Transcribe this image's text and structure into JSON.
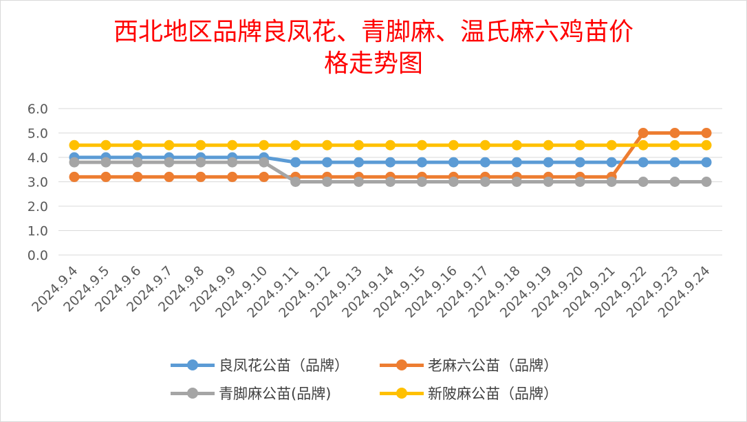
{
  "chart_data": {
    "type": "line",
    "title_lines": [
      "西北地区品牌良凤花、青脚麻、温氏麻六鸡苗价",
      "格走势图"
    ],
    "categories": [
      "2024.9.4",
      "2024.9.5",
      "2024.9.6",
      "2024.9.7",
      "2024.9.8",
      "2024.9.9",
      "2024.9.10",
      "2024.9.11",
      "2024.9.12",
      "2024.9.13",
      "2024.9.14",
      "2024.9.15",
      "2024.9.16",
      "2024.9.17",
      "2024.9.18",
      "2024.9.19",
      "2024.9.20",
      "2024.9.21",
      "2024.9.22",
      "2024.9.23",
      "2024.9.24"
    ],
    "y_ticks": [
      "0.0",
      "1.0",
      "2.0",
      "3.0",
      "4.0",
      "5.0",
      "6.0"
    ],
    "ylim": [
      0,
      6
    ],
    "grid": true,
    "legend_position": "bottom",
    "series": [
      {
        "name": "良凤花公苗（品牌）",
        "color": "#5B9BD5",
        "values": [
          4.0,
          4.0,
          4.0,
          4.0,
          4.0,
          4.0,
          4.0,
          3.8,
          3.8,
          3.8,
          3.8,
          3.8,
          3.8,
          3.8,
          3.8,
          3.8,
          3.8,
          3.8,
          3.8,
          3.8,
          3.8
        ]
      },
      {
        "name": "老麻六公苗（品牌）",
        "color": "#ED7D31",
        "values": [
          3.2,
          3.2,
          3.2,
          3.2,
          3.2,
          3.2,
          3.2,
          3.2,
          3.2,
          3.2,
          3.2,
          3.2,
          3.2,
          3.2,
          3.2,
          3.2,
          3.2,
          3.2,
          5.0,
          5.0,
          5.0
        ]
      },
      {
        "name": "青脚麻公苗(品牌)",
        "color": "#A5A5A5",
        "values": [
          3.8,
          3.8,
          3.8,
          3.8,
          3.8,
          3.8,
          3.8,
          3.0,
          3.0,
          3.0,
          3.0,
          3.0,
          3.0,
          3.0,
          3.0,
          3.0,
          3.0,
          3.0,
          3.0,
          3.0,
          3.0
        ]
      },
      {
        "name": "新陂麻公苗（品牌）",
        "color": "#FFC000",
        "values": [
          4.5,
          4.5,
          4.5,
          4.5,
          4.5,
          4.5,
          4.5,
          4.5,
          4.5,
          4.5,
          4.5,
          4.5,
          4.5,
          4.5,
          4.5,
          4.5,
          4.5,
          4.5,
          4.5,
          4.5,
          4.5
        ]
      }
    ]
  }
}
